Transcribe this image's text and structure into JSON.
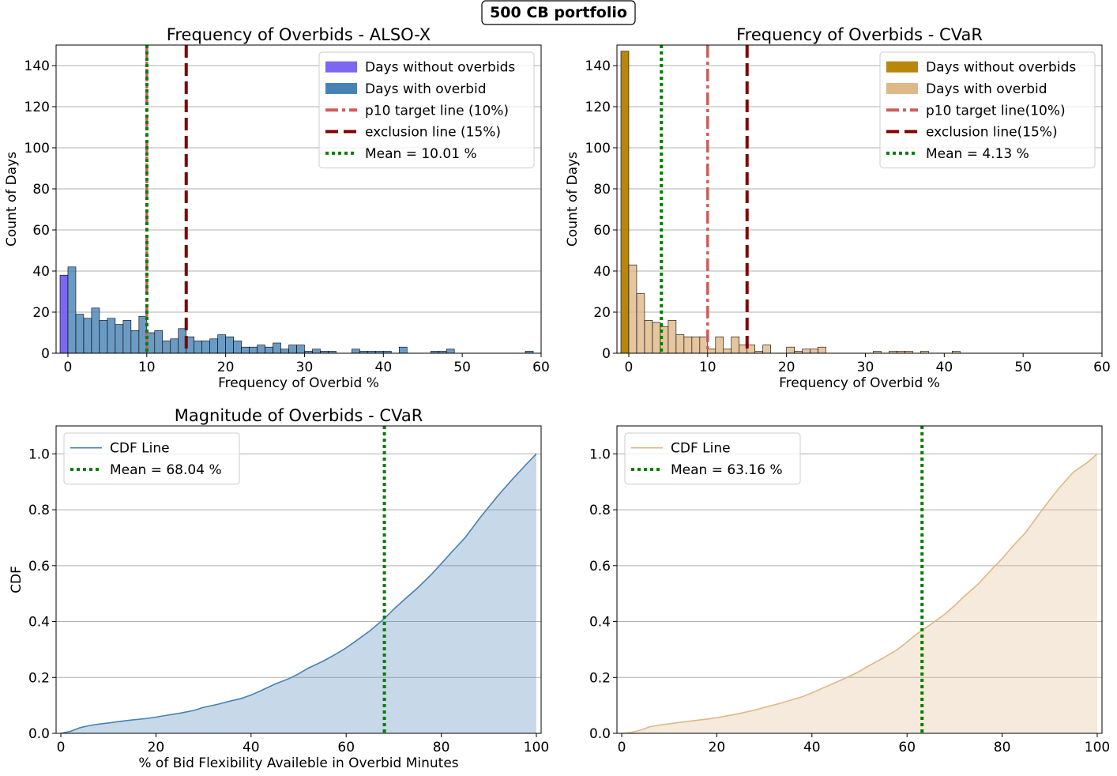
{
  "suptitle": "500 CB portfolio",
  "colors": {
    "alsox_without": "#7B68EE",
    "alsox_with": "#4682B4",
    "cvar_without": "#B8860B",
    "cvar_with": "#DEB887",
    "p10_line": "#CD5C5C",
    "exclusion_line": "#800000",
    "mean_line": "#008000",
    "grid": "#b0b0b0"
  },
  "chart_data": [
    {
      "id": "freq_alsox",
      "type": "bar",
      "title": "Frequency of Overbids - ALSO-X",
      "xlabel": "Frequency of Overbid %",
      "ylabel": "Count of Days",
      "xlim": [
        -1.5,
        60
      ],
      "ylim": [
        0,
        150
      ],
      "xticks": [
        0,
        10,
        20,
        30,
        40,
        50,
        60
      ],
      "yticks": [
        0,
        20,
        40,
        60,
        80,
        100,
        120,
        140
      ],
      "grid": "y",
      "legend_position": "top-right",
      "bin_width": 1,
      "series": [
        {
          "name": "Days without overbids",
          "color_key": "alsox_without",
          "x": [
            -1
          ],
          "values": [
            38
          ]
        },
        {
          "name": "Days with overbid",
          "color_key": "alsox_with",
          "x": [
            0,
            1,
            2,
            3,
            4,
            5,
            6,
            7,
            8,
            9,
            10,
            11,
            12,
            13,
            14,
            15,
            16,
            17,
            18,
            19,
            20,
            21,
            22,
            23,
            24,
            25,
            26,
            27,
            28,
            29,
            30,
            31,
            32,
            33,
            34,
            35,
            36,
            37,
            38,
            39,
            40,
            41,
            42,
            43,
            44,
            45,
            46,
            47,
            48,
            49,
            50,
            51,
            52,
            53,
            54,
            55,
            56,
            57,
            58
          ],
          "values": [
            42,
            19,
            17,
            22,
            16,
            17,
            14,
            16,
            11,
            18,
            10,
            11,
            6,
            7,
            12,
            8,
            6,
            6,
            7,
            9,
            8,
            6,
            3,
            3,
            4,
            3,
            5,
            2,
            4,
            4,
            1,
            2,
            1,
            1,
            0,
            0,
            2,
            1,
            1,
            1,
            1,
            0,
            3,
            0,
            0,
            0,
            1,
            1,
            2,
            0,
            0,
            0,
            0,
            0,
            0,
            0,
            0,
            0,
            1
          ]
        }
      ],
      "vlines": [
        {
          "name": "p10 target line (10%)",
          "x": 10,
          "color_key": "p10_line",
          "style": "dashdot"
        },
        {
          "name": "exclusion line (15%)",
          "x": 15,
          "color_key": "exclusion_line",
          "style": "dashed"
        },
        {
          "name": "Mean = 10.01 %",
          "x": 10.01,
          "color_key": "mean_line",
          "style": "dotted"
        }
      ],
      "legend": [
        "Days without overbids",
        "Days with overbid",
        "p10 target line (10%)",
        "exclusion line (15%)",
        "Mean = 10.01 %"
      ]
    },
    {
      "id": "freq_cvar",
      "type": "bar",
      "title": "Frequency of Overbids - CVaR",
      "xlabel": "Frequency of Overbid %",
      "ylabel": "Count of Days",
      "xlim": [
        -1.5,
        60
      ],
      "ylim": [
        0,
        150
      ],
      "xticks": [
        0,
        10,
        20,
        30,
        40,
        50,
        60
      ],
      "yticks": [
        0,
        20,
        40,
        60,
        80,
        100,
        120,
        140
      ],
      "grid": "y",
      "legend_position": "top-right",
      "bin_width": 1,
      "series": [
        {
          "name": "Days without overbids",
          "color_key": "cvar_without",
          "x": [
            -1
          ],
          "values": [
            147
          ]
        },
        {
          "name": "Days with overbid",
          "color_key": "cvar_with",
          "x": [
            0,
            1,
            2,
            3,
            4,
            5,
            6,
            7,
            8,
            9,
            10,
            11,
            12,
            13,
            14,
            15,
            16,
            17,
            18,
            19,
            20,
            21,
            22,
            23,
            24,
            25,
            26,
            27,
            28,
            29,
            30,
            31,
            32,
            33,
            34,
            35,
            36,
            37,
            38,
            39,
            40,
            41
          ],
          "values": [
            43,
            29,
            16,
            15,
            13,
            16,
            9,
            8,
            8,
            8,
            2,
            8,
            2,
            8,
            4,
            4,
            1,
            4,
            0,
            0,
            3,
            1,
            2,
            2,
            3,
            0,
            0,
            0,
            0,
            0,
            0,
            1,
            0,
            1,
            1,
            1,
            0,
            1,
            0,
            0,
            0,
            1
          ]
        }
      ],
      "vlines": [
        {
          "name": "p10 target line(10%)",
          "x": 10,
          "color_key": "p10_line",
          "style": "dashdot"
        },
        {
          "name": "exclusion line(15%)",
          "x": 15,
          "color_key": "exclusion_line",
          "style": "dashed"
        },
        {
          "name": "Mean = 4.13 %",
          "x": 4.13,
          "color_key": "mean_line",
          "style": "dotted"
        }
      ],
      "legend": [
        "Days without overbids",
        "Days with overbid",
        "p10 target line(10%)",
        "exclusion line(15%)",
        "Mean = 4.13 %"
      ]
    },
    {
      "id": "mag_alsox",
      "type": "area",
      "title": "Magnitude of Overbids - CVaR",
      "xlabel": "% of Bid Flexibility Availeble in Overbid Minutes",
      "ylabel": "CDF",
      "xlim": [
        -1,
        101
      ],
      "ylim": [
        0,
        1.1
      ],
      "xticks": [
        0,
        20,
        40,
        60,
        80,
        100
      ],
      "yticks": [
        0.0,
        0.2,
        0.4,
        0.6,
        0.8,
        1.0
      ],
      "grid": "y",
      "legend_position": "top-left",
      "line_color_key": "alsox_with",
      "x": [
        0,
        2,
        4,
        6,
        8,
        10,
        12,
        15,
        18,
        20,
        22,
        25,
        28,
        30,
        33,
        35,
        38,
        40,
        42,
        45,
        48,
        50,
        52,
        55,
        58,
        60,
        62,
        65,
        68,
        70,
        72,
        75,
        78,
        80,
        82,
        85,
        88,
        90,
        92,
        95,
        98,
        100
      ],
      "values": [
        0.0,
        0.007,
        0.02,
        0.028,
        0.033,
        0.037,
        0.042,
        0.048,
        0.053,
        0.058,
        0.064,
        0.072,
        0.082,
        0.093,
        0.104,
        0.113,
        0.125,
        0.137,
        0.152,
        0.176,
        0.196,
        0.213,
        0.233,
        0.257,
        0.285,
        0.306,
        0.33,
        0.367,
        0.41,
        0.444,
        0.475,
        0.52,
        0.57,
        0.607,
        0.645,
        0.7,
        0.768,
        0.81,
        0.852,
        0.91,
        0.965,
        1.0
      ],
      "vlines": [
        {
          "name": "Mean = 68.04 %",
          "x": 68.04,
          "color_key": "mean_line",
          "style": "dotted"
        }
      ],
      "legend": [
        "CDF Line",
        "Mean = 68.04 %"
      ]
    },
    {
      "id": "mag_cvar",
      "type": "area",
      "title": "",
      "xlabel": "",
      "ylabel": "",
      "xlim": [
        -1,
        101
      ],
      "ylim": [
        0,
        1.1
      ],
      "xticks": [
        0,
        20,
        40,
        60,
        80,
        100
      ],
      "yticks": [
        0.0,
        0.2,
        0.4,
        0.6,
        0.8,
        1.0
      ],
      "grid": "y",
      "legend_position": "top-left",
      "line_color_key": "cvar_with",
      "x": [
        0,
        2,
        4,
        6,
        8,
        10,
        12,
        15,
        18,
        20,
        22,
        25,
        28,
        30,
        33,
        35,
        38,
        40,
        42,
        45,
        48,
        50,
        52,
        55,
        58,
        60,
        62,
        65,
        68,
        70,
        72,
        75,
        78,
        80,
        82,
        85,
        88,
        90,
        92,
        95,
        98,
        100
      ],
      "values": [
        0.0,
        0.003,
        0.012,
        0.024,
        0.03,
        0.034,
        0.039,
        0.045,
        0.051,
        0.056,
        0.062,
        0.072,
        0.083,
        0.093,
        0.106,
        0.116,
        0.131,
        0.145,
        0.16,
        0.182,
        0.205,
        0.222,
        0.242,
        0.27,
        0.3,
        0.327,
        0.355,
        0.39,
        0.427,
        0.457,
        0.49,
        0.535,
        0.59,
        0.625,
        0.665,
        0.72,
        0.79,
        0.835,
        0.878,
        0.935,
        0.97,
        1.0
      ],
      "vlines": [
        {
          "name": "Mean = 63.16 %",
          "x": 63.16,
          "color_key": "mean_line",
          "style": "dotted"
        }
      ],
      "legend": [
        "CDF Line",
        "Mean = 63.16 %"
      ]
    }
  ]
}
